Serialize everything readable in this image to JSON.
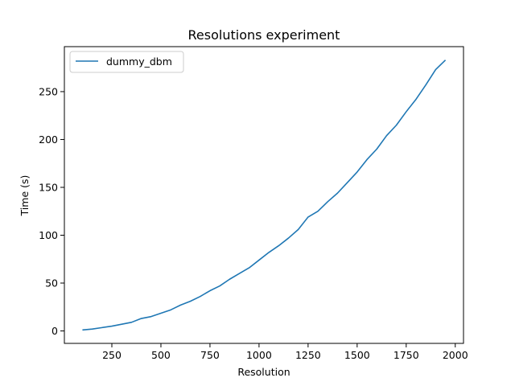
{
  "chart_data": {
    "type": "line",
    "title": "Resolutions experiment",
    "xlabel": "Resolution",
    "ylabel": "Time (s)",
    "xlim": [
      8,
      2042
    ],
    "ylim": [
      -13,
      297
    ],
    "xticks": [
      250,
      500,
      750,
      1000,
      1250,
      1500,
      1750,
      2000
    ],
    "yticks": [
      0,
      50,
      100,
      150,
      200,
      250
    ],
    "grid": false,
    "legend": "top-left",
    "series": [
      {
        "name": "dummy_dbm",
        "color": "#1f77b4",
        "x": [
          100,
          150,
          200,
          250,
          300,
          350,
          400,
          450,
          500,
          550,
          600,
          650,
          700,
          750,
          800,
          850,
          900,
          950,
          1000,
          1050,
          1100,
          1150,
          1200,
          1250,
          1300,
          1350,
          1400,
          1450,
          1500,
          1550,
          1600,
          1650,
          1700,
          1750,
          1800,
          1850,
          1900,
          1950
        ],
        "y": [
          1,
          2,
          3.5,
          5,
          7,
          9,
          13,
          15,
          18.5,
          22,
          27,
          31,
          36,
          42,
          47,
          54,
          60,
          66,
          74,
          82,
          89,
          97,
          106,
          119,
          125,
          135,
          144,
          155,
          166,
          179,
          190,
          204,
          215,
          229,
          242,
          257,
          273,
          283
        ]
      }
    ]
  }
}
